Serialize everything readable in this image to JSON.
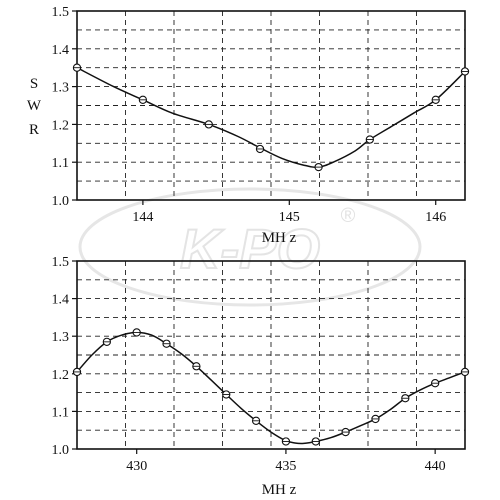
{
  "watermark": {
    "text": "K-PO",
    "mark": "®"
  },
  "chart_data": [
    {
      "type": "line",
      "ylabel": "SWR",
      "xlabel": "MH z",
      "xlim": [
        143.55,
        146.2
      ],
      "ylim": [
        1.0,
        1.5
      ],
      "x_ticks": [
        144,
        145,
        146
      ],
      "y_ticks": [
        "1.0",
        "1.1",
        "1.2",
        "1.3",
        "1.4",
        "1.5"
      ],
      "grid": true,
      "series": [
        {
          "markers": "circle",
          "x": [
            143.55,
            144.0,
            144.45,
            144.8,
            145.2,
            145.55,
            146.0,
            146.2
          ],
          "y": [
            1.35,
            1.265,
            1.2,
            1.135,
            1.087,
            1.16,
            1.265,
            1.34
          ]
        }
      ],
      "curve": {
        "x": [
          143.55,
          143.8,
          144.0,
          144.2,
          144.45,
          144.65,
          144.8,
          144.95,
          145.1,
          145.2,
          145.3,
          145.45,
          145.55,
          145.7,
          145.85,
          146.0,
          146.2
        ],
        "y": [
          1.35,
          1.3,
          1.265,
          1.23,
          1.2,
          1.168,
          1.138,
          1.11,
          1.092,
          1.087,
          1.1,
          1.13,
          1.16,
          1.195,
          1.23,
          1.265,
          1.34
        ]
      }
    },
    {
      "type": "line",
      "ylabel": "",
      "xlabel": "MH z",
      "xlim": [
        428.0,
        441.0
      ],
      "ylim": [
        1.0,
        1.5
      ],
      "x_ticks": [
        430,
        435,
        440
      ],
      "y_ticks": [
        "1.0",
        "1.1",
        "1.2",
        "1.3",
        "1.4",
        "1.5"
      ],
      "grid": true,
      "series": [
        {
          "markers": "circle",
          "x": [
            428.0,
            429.0,
            430.0,
            431.0,
            432.0,
            433.0,
            434.0,
            435.0,
            436.0,
            437.0,
            438.0,
            439.0,
            440.0,
            441.0
          ],
          "y": [
            1.205,
            1.285,
            1.31,
            1.28,
            1.22,
            1.145,
            1.075,
            1.02,
            1.02,
            1.045,
            1.08,
            1.135,
            1.175,
            1.205
          ]
        }
      ],
      "curve": {
        "x": [
          428.0,
          428.5,
          429.0,
          429.5,
          430.0,
          430.5,
          431.0,
          431.5,
          432.0,
          432.5,
          433.0,
          433.5,
          434.0,
          434.5,
          435.0,
          435.3,
          435.6,
          436.0,
          436.5,
          437.0,
          437.5,
          438.0,
          438.5,
          439.0,
          439.5,
          440.0,
          440.5,
          441.0
        ],
        "y": [
          1.205,
          1.25,
          1.285,
          1.303,
          1.31,
          1.303,
          1.28,
          1.253,
          1.22,
          1.183,
          1.145,
          1.108,
          1.075,
          1.045,
          1.022,
          1.016,
          1.015,
          1.02,
          1.03,
          1.045,
          1.062,
          1.08,
          1.105,
          1.135,
          1.157,
          1.175,
          1.19,
          1.205
        ]
      }
    }
  ]
}
